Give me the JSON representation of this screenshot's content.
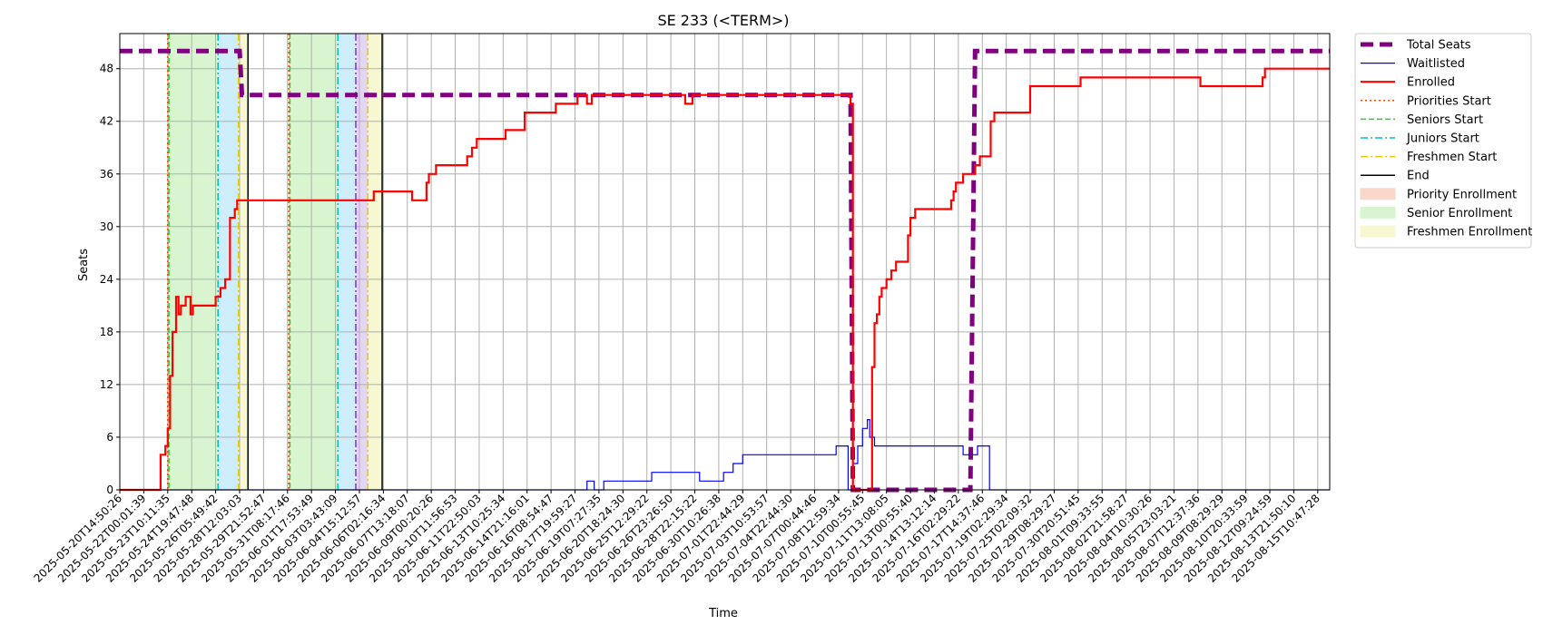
{
  "chart_data": {
    "type": "line",
    "title": "SE 233 (<TERM>)",
    "xlabel": "Time",
    "ylabel": "Seats",
    "ylim": [
      0,
      52
    ],
    "yticks": [
      0,
      6,
      12,
      18,
      24,
      30,
      36,
      42,
      48
    ],
    "grid": true,
    "legend_position": "outside-top-right",
    "x_categories": [
      "2025-05-20T14:50:26",
      "2025-05-22T00:01:39",
      "2025-05-23T10:11:35",
      "2025-05-24T19:47:48",
      "2025-05-26T05:49:42",
      "2025-05-28T12:03:03",
      "2025-05-29T21:52:47",
      "2025-05-31T08:17:46",
      "2025-06-01T17:53:49",
      "2025-06-03T03:43:09",
      "2025-06-04T15:12:57",
      "2025-06-06T02:16:34",
      "2025-06-07T13:18:07",
      "2025-06-09T00:20:26",
      "2025-06-10T11:56:53",
      "2025-06-11T22:50:03",
      "2025-06-13T10:25:34",
      "2025-06-14T21:16:01",
      "2025-06-16T08:54:47",
      "2025-06-17T19:59:27",
      "2025-06-19T07:27:35",
      "2025-06-20T18:24:30",
      "2025-06-25T12:29:22",
      "2025-06-26T23:26:50",
      "2025-06-28T22:15:22",
      "2025-06-30T10:26:38",
      "2025-07-01T22:44:29",
      "2025-07-03T10:53:57",
      "2025-07-04T22:44:30",
      "2025-07-07T00:44:46",
      "2025-07-08T12:59:34",
      "2025-07-10T00:55:45",
      "2025-07-11T13:08:05",
      "2025-07-13T00:55:40",
      "2025-07-14T13:12:14",
      "2025-07-16T02:29:22",
      "2025-07-17T14:37:46",
      "2025-07-19T02:29:34",
      "2025-07-25T02:09:32",
      "2025-07-29T08:29:27",
      "2025-07-30T20:51:45",
      "2025-08-01T09:33:55",
      "2025-08-02T21:58:27",
      "2025-08-04T10:30:26",
      "2025-08-05T23:03:21",
      "2025-08-07T12:37:36",
      "2025-08-09T08:29:29",
      "2025-08-10T20:33:59",
      "2025-08-12T09:24:59",
      "2025-08-13T21:50:10",
      "2025-08-15T10:47:28"
    ],
    "x_range": [
      0,
      50.5
    ],
    "series": [
      {
        "name": "Total Seats",
        "color": "#800080",
        "style": "dashed-thick",
        "points": [
          [
            0,
            50
          ],
          [
            5,
            50
          ],
          [
            5.1,
            45
          ],
          [
            30.5,
            45
          ],
          [
            30.6,
            0
          ],
          [
            35.5,
            0
          ],
          [
            35.7,
            50
          ],
          [
            50.5,
            50
          ]
        ]
      },
      {
        "name": "Waitlisted",
        "color": "#0000ff",
        "style": "solid-thin",
        "points": [
          [
            0,
            0
          ],
          [
            19.5,
            0
          ],
          [
            19.5,
            1
          ],
          [
            19.8,
            1
          ],
          [
            19.8,
            0
          ],
          [
            20.2,
            0
          ],
          [
            20.2,
            1
          ],
          [
            22.2,
            1
          ],
          [
            22.2,
            2
          ],
          [
            24.2,
            2
          ],
          [
            24.2,
            1
          ],
          [
            25.2,
            1
          ],
          [
            25.2,
            2
          ],
          [
            25.6,
            2
          ],
          [
            25.6,
            3
          ],
          [
            26.0,
            3
          ],
          [
            26.0,
            4
          ],
          [
            29.9,
            4
          ],
          [
            29.9,
            5
          ],
          [
            30.4,
            5
          ],
          [
            30.4,
            0
          ],
          [
            30.6,
            0
          ],
          [
            30.6,
            3
          ],
          [
            30.8,
            3
          ],
          [
            30.8,
            5
          ],
          [
            31.0,
            5
          ],
          [
            31.0,
            7
          ],
          [
            31.2,
            7
          ],
          [
            31.2,
            8
          ],
          [
            31.3,
            8
          ],
          [
            31.3,
            6
          ],
          [
            31.5,
            6
          ],
          [
            31.5,
            5
          ],
          [
            35.2,
            5
          ],
          [
            35.2,
            4
          ],
          [
            35.8,
            4
          ],
          [
            35.8,
            5
          ],
          [
            36.3,
            5
          ],
          [
            36.3,
            0
          ],
          [
            50.5,
            0
          ]
        ]
      },
      {
        "name": "Enrolled",
        "color": "#ff0000",
        "style": "solid",
        "points": [
          [
            0,
            0
          ],
          [
            1.7,
            0
          ],
          [
            1.7,
            4
          ],
          [
            1.9,
            4
          ],
          [
            1.9,
            5
          ],
          [
            2.0,
            5
          ],
          [
            2.0,
            7
          ],
          [
            2.1,
            7
          ],
          [
            2.1,
            13
          ],
          [
            2.2,
            13
          ],
          [
            2.2,
            18
          ],
          [
            2.35,
            18
          ],
          [
            2.35,
            22
          ],
          [
            2.45,
            22
          ],
          [
            2.45,
            20
          ],
          [
            2.55,
            20
          ],
          [
            2.55,
            21
          ],
          [
            2.75,
            21
          ],
          [
            2.75,
            22
          ],
          [
            2.95,
            22
          ],
          [
            2.95,
            20
          ],
          [
            3.05,
            20
          ],
          [
            3.05,
            21
          ],
          [
            4.0,
            21
          ],
          [
            4.0,
            22
          ],
          [
            4.2,
            22
          ],
          [
            4.2,
            23
          ],
          [
            4.4,
            23
          ],
          [
            4.4,
            24
          ],
          [
            4.6,
            24
          ],
          [
            4.6,
            31
          ],
          [
            4.8,
            31
          ],
          [
            4.8,
            32
          ],
          [
            4.9,
            32
          ],
          [
            4.9,
            33
          ],
          [
            10.6,
            33
          ],
          [
            10.6,
            34
          ],
          [
            12.2,
            34
          ],
          [
            12.2,
            33
          ],
          [
            12.8,
            33
          ],
          [
            12.8,
            35
          ],
          [
            12.9,
            35
          ],
          [
            12.9,
            36
          ],
          [
            13.2,
            36
          ],
          [
            13.2,
            37
          ],
          [
            14.5,
            37
          ],
          [
            14.5,
            38
          ],
          [
            14.7,
            38
          ],
          [
            14.7,
            39
          ],
          [
            14.9,
            39
          ],
          [
            14.9,
            40
          ],
          [
            16.1,
            40
          ],
          [
            16.1,
            41
          ],
          [
            16.9,
            41
          ],
          [
            16.9,
            43
          ],
          [
            18.2,
            43
          ],
          [
            18.2,
            44
          ],
          [
            19.1,
            44
          ],
          [
            19.1,
            45
          ],
          [
            19.5,
            45
          ],
          [
            19.5,
            44
          ],
          [
            19.7,
            44
          ],
          [
            19.7,
            45
          ],
          [
            23.6,
            45
          ],
          [
            23.6,
            44
          ],
          [
            23.9,
            44
          ],
          [
            23.9,
            45
          ],
          [
            30.5,
            45
          ],
          [
            30.5,
            44
          ],
          [
            30.6,
            44
          ],
          [
            30.6,
            0
          ],
          [
            31.4,
            0
          ],
          [
            31.4,
            14
          ],
          [
            31.5,
            14
          ],
          [
            31.5,
            19
          ],
          [
            31.6,
            19
          ],
          [
            31.6,
            20
          ],
          [
            31.7,
            20
          ],
          [
            31.7,
            22
          ],
          [
            31.8,
            22
          ],
          [
            31.8,
            23
          ],
          [
            32.0,
            23
          ],
          [
            32.0,
            24
          ],
          [
            32.2,
            24
          ],
          [
            32.2,
            25
          ],
          [
            32.4,
            25
          ],
          [
            32.4,
            26
          ],
          [
            32.9,
            26
          ],
          [
            32.9,
            29
          ],
          [
            33.0,
            29
          ],
          [
            33.0,
            31
          ],
          [
            33.2,
            31
          ],
          [
            33.2,
            32
          ],
          [
            34.7,
            32
          ],
          [
            34.7,
            33
          ],
          [
            34.8,
            33
          ],
          [
            34.8,
            34
          ],
          [
            34.9,
            34
          ],
          [
            34.9,
            35
          ],
          [
            35.2,
            35
          ],
          [
            35.2,
            36
          ],
          [
            35.7,
            36
          ],
          [
            35.7,
            37
          ],
          [
            35.9,
            37
          ],
          [
            35.9,
            38
          ],
          [
            36.1,
            38
          ],
          [
            36.1,
            38
          ],
          [
            36.35,
            38
          ],
          [
            36.35,
            42
          ],
          [
            36.5,
            42
          ],
          [
            36.5,
            43
          ],
          [
            38.0,
            43
          ],
          [
            38.0,
            46
          ],
          [
            40.1,
            46
          ],
          [
            40.1,
            47
          ],
          [
            45.1,
            47
          ],
          [
            45.1,
            46
          ],
          [
            47.7,
            46
          ],
          [
            47.7,
            47
          ],
          [
            47.8,
            47
          ],
          [
            47.8,
            48
          ],
          [
            50.5,
            48
          ]
        ]
      }
    ],
    "markers": [
      {
        "name": "Priorities Start",
        "color": "#ff4500",
        "style": "dotted",
        "x": [
          2.0,
          7.05
        ]
      },
      {
        "name": "Seniors Start",
        "color": "#32cd32",
        "style": "dashed",
        "x": [
          2.05,
          7.1
        ]
      },
      {
        "name": "Juniors Start",
        "color": "#00bfc4",
        "style": "dashdot",
        "x": [
          4.1,
          9.1
        ]
      },
      {
        "name": "Freshmen Start",
        "color": "#e6cc00",
        "style": "dashdot",
        "x": [
          4.95,
          10.35
        ]
      },
      {
        "name": "End",
        "color": "#000000",
        "style": "solid",
        "x": [
          5.35,
          10.95
        ]
      },
      {
        "name": "Sophomores Start",
        "color": "#8a2be2",
        "style": "dashdot",
        "x": [
          9.85
        ],
        "in_legend": false
      }
    ],
    "spans": [
      {
        "name": "Priority Enrollment",
        "color": "#fad7c9",
        "ranges": [
          [
            2.0,
            2.05
          ],
          [
            7.05,
            7.1
          ]
        ]
      },
      {
        "name": "Senior Enrollment",
        "color": "#d8f5d0",
        "ranges": [
          [
            2.05,
            4.1
          ],
          [
            7.1,
            9.1
          ]
        ]
      },
      {
        "name": "Junior Enrollment",
        "color": "#cdeefa",
        "ranges": [
          [
            4.1,
            4.95
          ],
          [
            9.1,
            9.85
          ]
        ],
        "in_legend": false
      },
      {
        "name": "Sophomore Enrollment",
        "color": "#e2d5f5",
        "ranges": [
          [
            9.85,
            10.35
          ]
        ],
        "in_legend": false
      },
      {
        "name": "Freshmen Enrollment",
        "color": "#f7f7d2",
        "ranges": [
          [
            4.95,
            5.35
          ],
          [
            10.35,
            10.95
          ]
        ]
      }
    ],
    "legend": [
      "Total Seats",
      "Waitlisted",
      "Enrolled",
      "Priorities Start",
      "Seniors Start",
      "Juniors Start",
      "Freshmen Start",
      "End",
      "Priority Enrollment",
      "Senior Enrollment",
      "Freshmen Enrollment"
    ]
  }
}
